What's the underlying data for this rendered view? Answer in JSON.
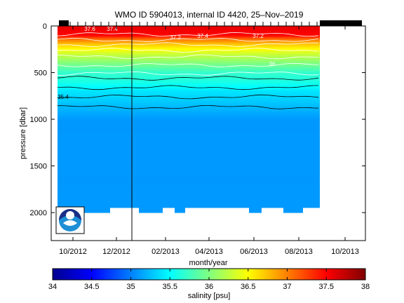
{
  "chart_data": {
    "type": "heatmap",
    "title": "WMO ID 5904013, internal ID 4420, 25–Nov–2019",
    "xlabel": "month/year",
    "ylabel": "pressure [dbar]",
    "x_ticks": [
      "10/2012",
      "12/2012",
      "02/2013",
      "04/2013",
      "06/2013",
      "08/2013",
      "10/2013"
    ],
    "y_ticks": [
      "0",
      "500",
      "1000",
      "1500",
      "2000"
    ],
    "ylim": [
      0,
      2300
    ],
    "y_inverted": true,
    "colorbar": {
      "label": "salinity [psu]",
      "ticks": [
        "34",
        "34.5",
        "35",
        "35.5",
        "36",
        "36.5",
        "37",
        "37.5",
        "38"
      ],
      "range": [
        34,
        38
      ],
      "colormap": "jet"
    },
    "profile": [
      {
        "pressure": 0,
        "salinity": 37.6
      },
      {
        "pressure": 100,
        "salinity": 37.5
      },
      {
        "pressure": 150,
        "salinity": 37.0
      },
      {
        "pressure": 200,
        "salinity": 36.7
      },
      {
        "pressure": 300,
        "salinity": 36.3
      },
      {
        "pressure": 400,
        "salinity": 36.0
      },
      {
        "pressure": 500,
        "salinity": 35.7
      },
      {
        "pressure": 600,
        "salinity": 35.6
      },
      {
        "pressure": 700,
        "salinity": 35.4
      },
      {
        "pressure": 800,
        "salinity": 35.3
      },
      {
        "pressure": 900,
        "salinity": 35.2
      },
      {
        "pressure": 1000,
        "salinity": 35.1
      },
      {
        "pressure": 2000,
        "salinity": 35.1
      }
    ],
    "contour_labels": [
      "37.6",
      "37.4",
      "37.2",
      "37.4",
      "37.2",
      "36",
      "35.4"
    ],
    "max_pressure": 2000
  }
}
